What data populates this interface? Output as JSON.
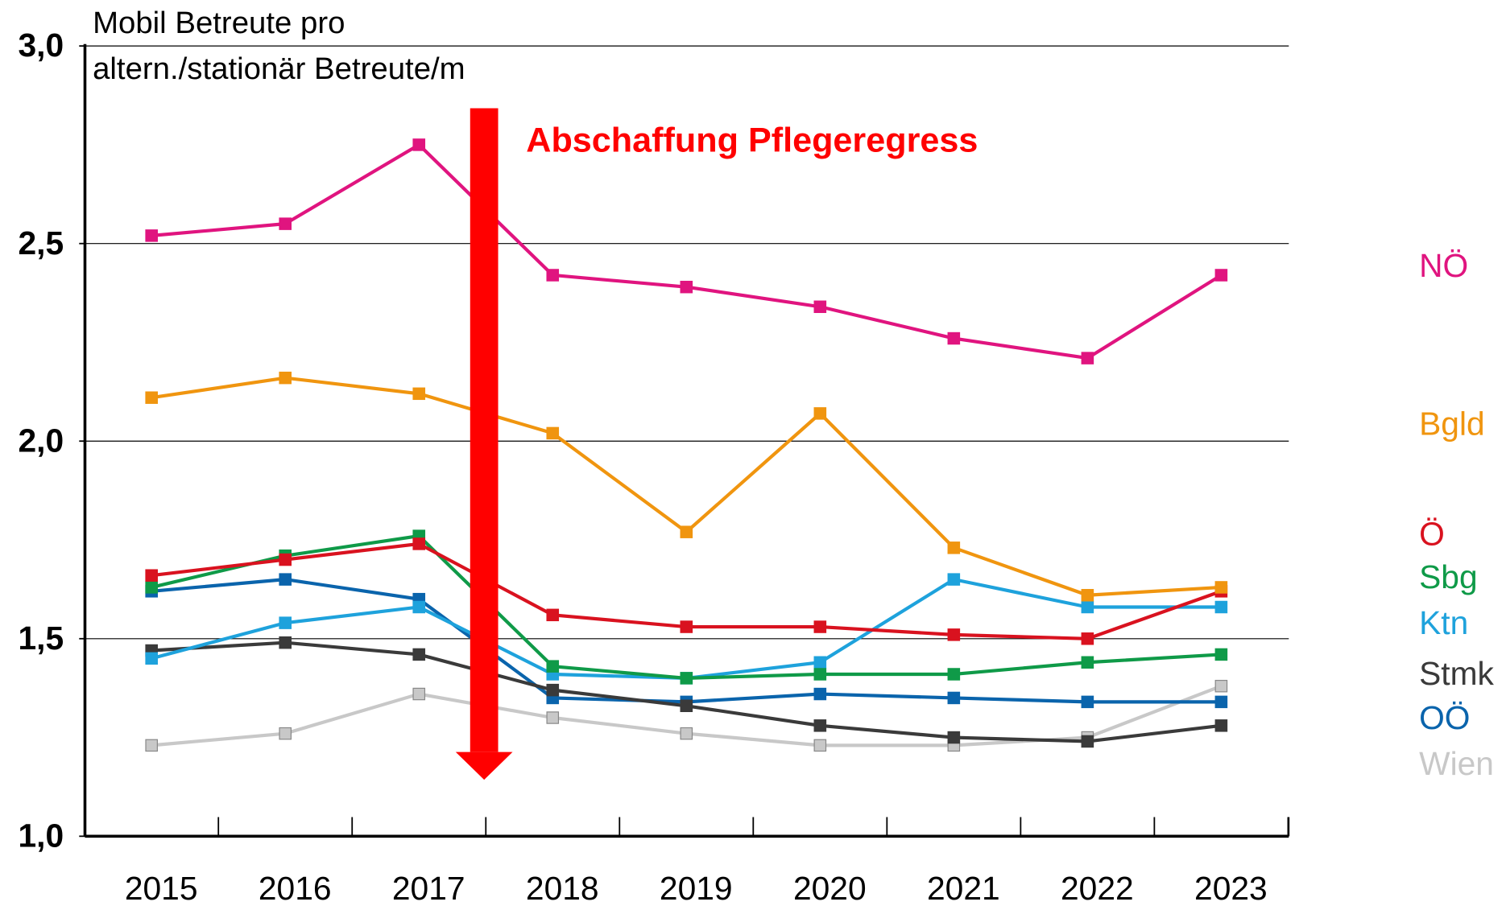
{
  "chart_data": {
    "type": "line",
    "y_label": [
      "Mobil Betreute pro",
      "altern./stationär Betreute/m"
    ],
    "annotation": "Abschaffung Pflegeregress",
    "categories": [
      "2015",
      "2016",
      "2017",
      "2018",
      "2019",
      "2020",
      "2021",
      "2022",
      "2023"
    ],
    "ylim": [
      1.0,
      3.0
    ],
    "yticks": [
      {
        "value": 1.0,
        "label": "1,0"
      },
      {
        "value": 1.5,
        "label": "1,5"
      },
      {
        "value": 2.0,
        "label": "2,0"
      },
      {
        "value": 2.5,
        "label": "2,5"
      },
      {
        "value": 3.0,
        "label": "3,0"
      }
    ],
    "grid": true,
    "series": [
      {
        "name": "NÖ",
        "color": "#e0147f",
        "values": [
          2.52,
          2.55,
          2.75,
          2.42,
          2.39,
          2.34,
          2.26,
          2.21,
          2.42
        ]
      },
      {
        "name": "Bgld",
        "color": "#f0950f",
        "values": [
          2.11,
          2.16,
          2.12,
          2.02,
          1.77,
          2.07,
          1.73,
          1.61,
          1.63
        ]
      },
      {
        "name": "Ö",
        "color": "#d9121f",
        "values": [
          1.66,
          1.7,
          1.74,
          1.56,
          1.53,
          1.53,
          1.51,
          1.5,
          1.62
        ]
      },
      {
        "name": "Sbg",
        "color": "#0f9a48",
        "values": [
          1.63,
          1.71,
          1.76,
          1.43,
          1.4,
          1.41,
          1.41,
          1.44,
          1.46
        ]
      },
      {
        "name": "Ktn",
        "color": "#1ea2dc",
        "values": [
          1.45,
          1.54,
          1.58,
          1.41,
          1.4,
          1.44,
          1.65,
          1.58,
          1.58
        ]
      },
      {
        "name": "Stmk",
        "color": "#3a3a3a",
        "values": [
          1.47,
          1.49,
          1.46,
          1.37,
          1.33,
          1.28,
          1.25,
          1.24,
          1.28
        ]
      },
      {
        "name": "OÖ",
        "color": "#0a64ac",
        "values": [
          1.62,
          1.65,
          1.6,
          1.35,
          1.34,
          1.36,
          1.35,
          1.34,
          1.34
        ]
      },
      {
        "name": "Wien",
        "color": "#c8c8c8",
        "values": [
          1.23,
          1.26,
          1.36,
          1.3,
          1.26,
          1.23,
          1.23,
          1.25,
          1.38
        ]
      }
    ]
  }
}
